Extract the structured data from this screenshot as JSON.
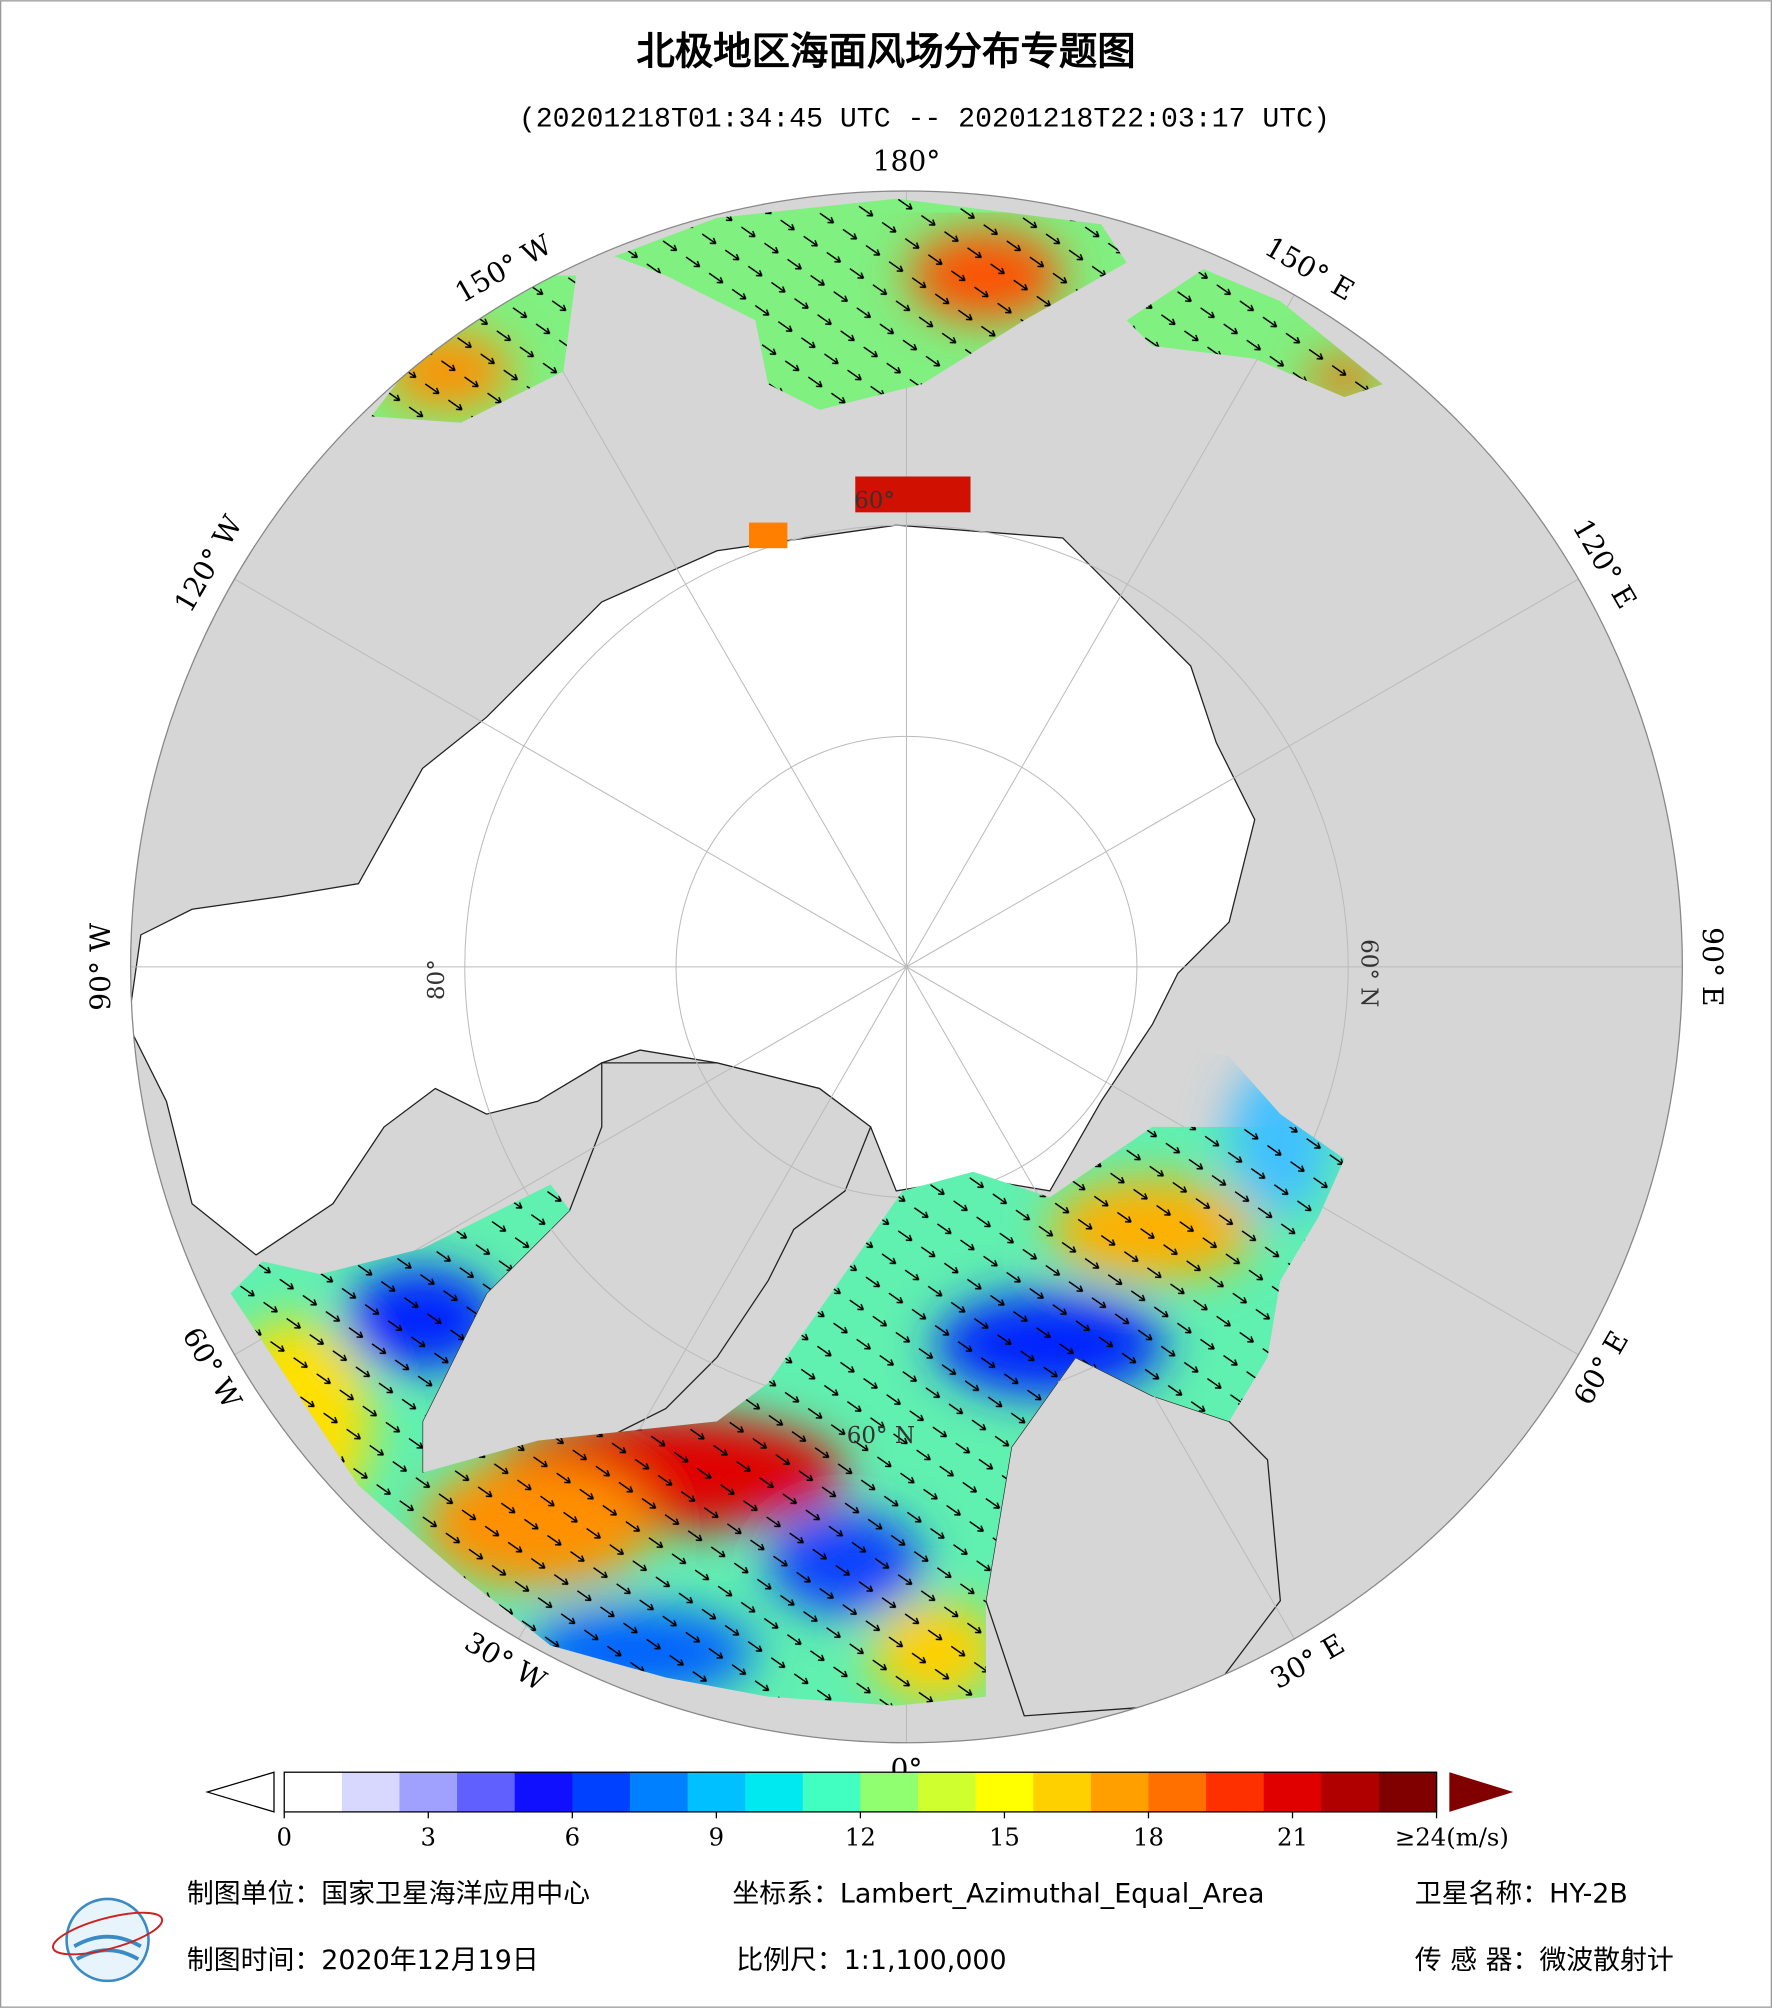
{
  "map": {
    "title": "北极地区海面风场分布专题图",
    "subtitle": "(20201218T01:34:45 UTC -- 20201218T22:03:17 UTC)",
    "longitude_labels": [
      "180°",
      "150° E",
      "120° E",
      "90° E",
      "60° E",
      "30° E",
      "0°",
      "30° W",
      "60° W",
      "90° W",
      "120° W",
      "150° W"
    ],
    "latitude_labels": [
      "60° N",
      "60° N",
      "80°",
      "60°"
    ],
    "colorbar": {
      "lim": [
        0,
        24
      ],
      "ticks": [
        0,
        3,
        6,
        9,
        12,
        15,
        18,
        21,
        {
          "value": 24,
          "label": "≥24(m/s)"
        }
      ],
      "colors": [
        "#ffffff",
        "#d8d8ff",
        "#a0a0ff",
        "#6060ff",
        "#1010ff",
        "#0040ff",
        "#0080ff",
        "#00c0ff",
        "#00e8f0",
        "#40ffc0",
        "#90ff70",
        "#d0ff30",
        "#ffff00",
        "#ffd000",
        "#ffa000",
        "#ff7000",
        "#ff3000",
        "#e00000",
        "#b00000",
        "#800000"
      ]
    }
  },
  "footer": {
    "unit": "制图单位：国家卫星海洋应用中心",
    "coordinate": "坐标系：Lambert_Azimuthal_Equal_Area",
    "satellite": "卫星名称：HY-2B",
    "date": "制图时间：2020年12月19日",
    "scale": "比例尺：1:1,100,000",
    "sensor": "传 感 器：微波散射计"
  }
}
